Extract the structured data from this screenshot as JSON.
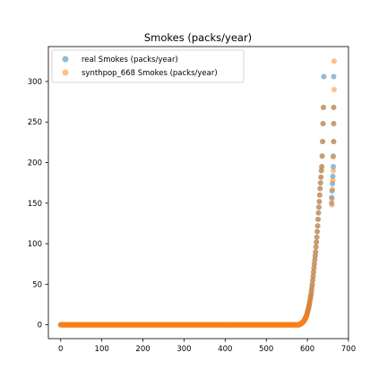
{
  "chart_data": {
    "type": "scatter",
    "title": "Smokes (packs/year)",
    "xlabel": "",
    "ylabel": "",
    "xlim": [
      -30,
      700
    ],
    "ylim": [
      -17,
      343
    ],
    "xticks": [
      0,
      100,
      200,
      300,
      400,
      500,
      600,
      700
    ],
    "yticks": [
      0,
      50,
      100,
      150,
      200,
      250,
      300
    ],
    "grid": false,
    "legend_position": "top-left",
    "series": [
      {
        "name": "real Smokes (packs/year)",
        "color": "#1f77b4",
        "alpha": 0.5,
        "zero_count": 580,
        "x_start": 580,
        "values": [
          0.3,
          0.5,
          0.8,
          1,
          1.3,
          1.6,
          2,
          2.4,
          2.8,
          3.3,
          3.8,
          4.5,
          5.2,
          6,
          7,
          8,
          9,
          10,
          11.5,
          13,
          15,
          17,
          19,
          21,
          23.5,
          26,
          29,
          32,
          35,
          38,
          42,
          46,
          50,
          55,
          60,
          65,
          70,
          75,
          80,
          85,
          90,
          96,
          102,
          108,
          115,
          122,
          130,
          138,
          145,
          152,
          160,
          168,
          175,
          182,
          190,
          195,
          208,
          226,
          248,
          268,
          306
        ],
        "points": [
          [
            664,
            306
          ],
          [
            664,
            268
          ],
          [
            664,
            248
          ],
          [
            664,
            226
          ],
          [
            663,
            208
          ],
          [
            663,
            195
          ],
          [
            662,
            183
          ],
          [
            661,
            174
          ],
          [
            660,
            165
          ],
          [
            659,
            157
          ],
          [
            659,
            150
          ]
        ]
      },
      {
        "name": "synthpop_668 Smokes (packs/year)",
        "color": "#ff7f0e",
        "alpha": 0.5,
        "zero_count": 580,
        "x_start": 580,
        "values": [
          0.3,
          0.5,
          0.8,
          1,
          1.3,
          1.6,
          2,
          2.4,
          2.8,
          3.3,
          3.8,
          4.5,
          5.2,
          6,
          7,
          8,
          9,
          10,
          11.5,
          13,
          15,
          17,
          19,
          21,
          23.5,
          26,
          29,
          32,
          35,
          38,
          42,
          46,
          50,
          55,
          60,
          65,
          70,
          75,
          80,
          85,
          90,
          96,
          102,
          108,
          115,
          122,
          130,
          138,
          145,
          152,
          160,
          168,
          175,
          182,
          190,
          195,
          208,
          226,
          248,
          268
        ],
        "points": [
          [
            665,
            325
          ],
          [
            665,
            290
          ],
          [
            664,
            268
          ],
          [
            664,
            248
          ],
          [
            664,
            226
          ],
          [
            663,
            207
          ],
          [
            663,
            190
          ],
          [
            662,
            178
          ],
          [
            661,
            167
          ],
          [
            660,
            155
          ],
          [
            660,
            148
          ]
        ]
      }
    ]
  }
}
